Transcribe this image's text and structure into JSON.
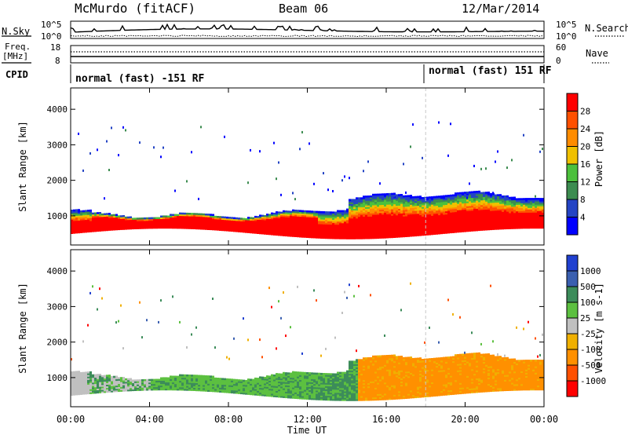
{
  "header": {
    "station": "McMurdo (fitACF)",
    "beam": "Beam 06",
    "date": "12/Mar/2014"
  },
  "strip_nsky": {
    "left_label": "N.Sky",
    "left_ticks": [
      "10^5",
      "10^0"
    ],
    "right_ticks": [
      "10^5",
      "10^0"
    ],
    "right_label": "N.Search"
  },
  "strip_freq": {
    "left_label_1": "Freq.",
    "left_label_2": "[MHz]",
    "left_ticks": [
      "18",
      "8"
    ],
    "right_ticks": [
      "60",
      "0"
    ],
    "right_label": "Nave"
  },
  "strip_cpid": {
    "left_label": "CPID",
    "segments": [
      {
        "text": "normal (fast) -151 RF",
        "start_hour": 0
      },
      {
        "text": "normal (fast) 151 RF",
        "start_hour": 18
      }
    ]
  },
  "colors": {
    "power_scale": [
      "#0000ff",
      "#2444c4",
      "#3c8c50",
      "#4cc03c",
      "#f0c000",
      "#ff8c00",
      "#ff5000",
      "#ff0000"
    ],
    "velocity_scale": [
      "#2040d0",
      "#3a5fb0",
      "#3c8c5a",
      "#5cc040",
      "#c0c0c0",
      "#f0b000",
      "#ff9000",
      "#ff5000",
      "#ff0000"
    ]
  },
  "chart_data": [
    {
      "type": "heatmap",
      "title": "",
      "quantity": "Power",
      "ylabel": "Slant Range [km]",
      "xlabel": "Time UT",
      "y_ticks": [
        "1000",
        "2000",
        "3000",
        "4000"
      ],
      "ylim": [
        180,
        4600
      ],
      "colorbar_label": "Power [dB]",
      "colorbar_ticks": [
        "4",
        "8",
        "12",
        "16",
        "20",
        "24",
        "28"
      ],
      "x_ticks": [
        "00:00",
        "04:00",
        "08:00",
        "12:00",
        "16:00",
        "20:00",
        "00:00"
      ]
    },
    {
      "type": "heatmap",
      "title": "",
      "quantity": "Velocity",
      "ylabel": "Slant Range [km]",
      "xlabel": "Time UT",
      "y_ticks": [
        "1000",
        "2000",
        "3000",
        "4000"
      ],
      "ylim": [
        180,
        4600
      ],
      "colorbar_label": "Velocity [m s-1]",
      "colorbar_ticks": [
        "1000",
        "500",
        "100",
        "25",
        "-25",
        "-100",
        "-500",
        "-1000"
      ],
      "x_ticks": [
        "00:00",
        "04:00",
        "08:00",
        "12:00",
        "16:00",
        "20:00",
        "00:00"
      ]
    }
  ],
  "x_axis": {
    "ticks": [
      "00:00",
      "04:00",
      "08:00",
      "12:00",
      "16:00",
      "20:00",
      "00:00"
    ],
    "label": "Time UT"
  }
}
